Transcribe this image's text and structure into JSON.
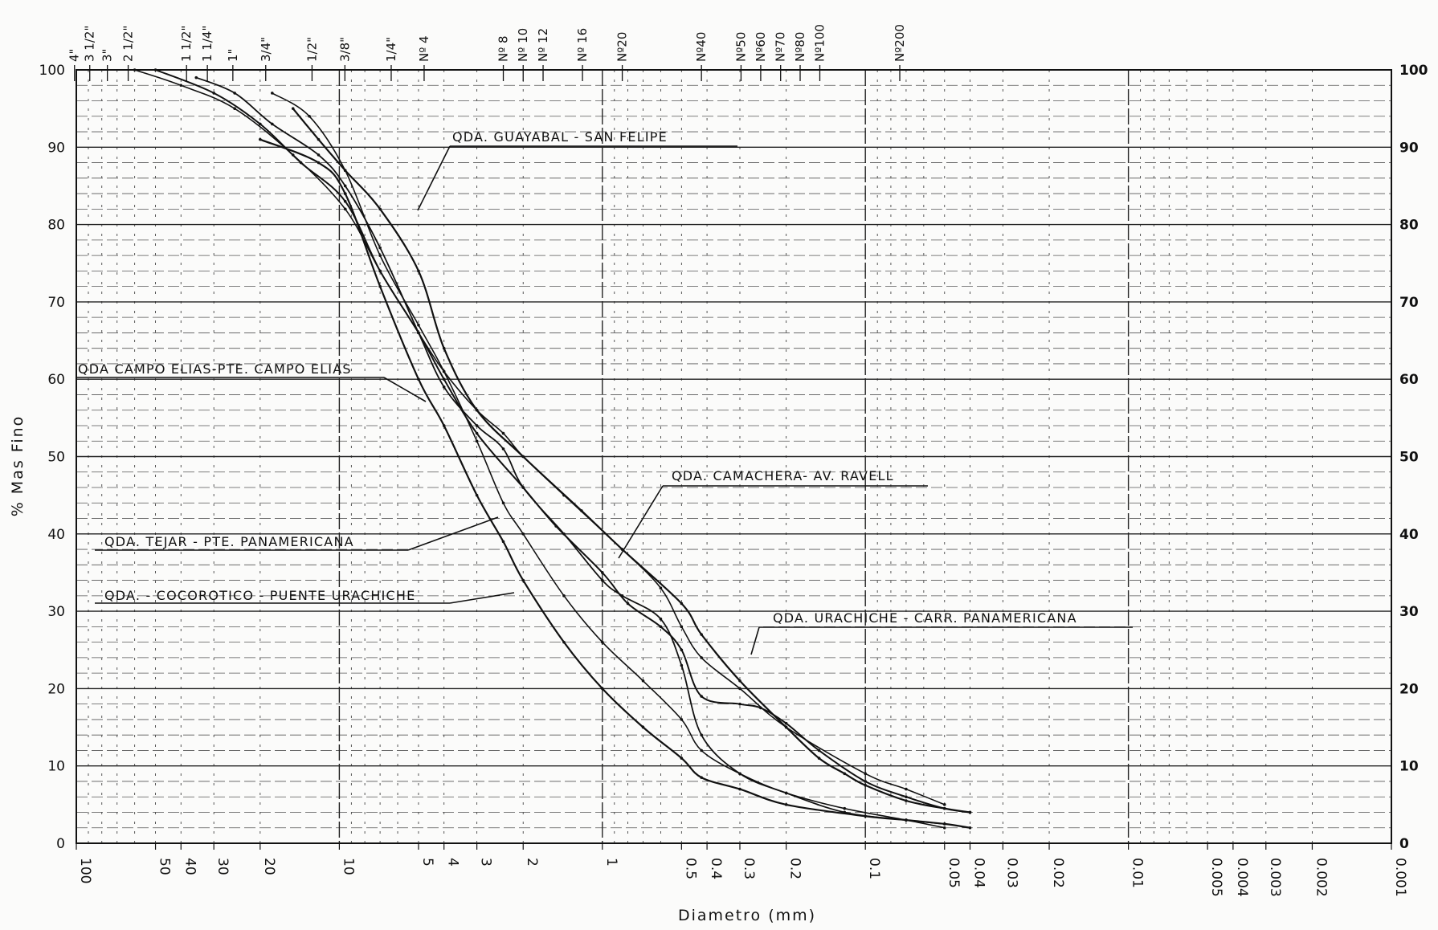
{
  "chart_data": {
    "type": "line",
    "title": "",
    "xlabel": "Diametro (mm)",
    "ylabel": "% Mas Fino",
    "x_scale": "log",
    "x_reversed": true,
    "xlim": [
      100,
      0.001
    ],
    "ylim": [
      0,
      100
    ],
    "grid": true,
    "x_tick_labels": [
      "100",
      "50",
      "40",
      "30",
      "20",
      "10",
      "5",
      "4",
      "3",
      "2",
      "1",
      "0.5",
      "0.4",
      "0.3",
      "0.2",
      "0.1",
      "0.05",
      "0.04",
      "0.03",
      "0.02",
      "0.01",
      "0.005",
      "0.004",
      "0.003",
      "0.002",
      "0.001"
    ],
    "x_tick_values": [
      100,
      50,
      40,
      30,
      20,
      10,
      5,
      4,
      3,
      2,
      1,
      0.5,
      0.4,
      0.3,
      0.2,
      0.1,
      0.05,
      0.04,
      0.03,
      0.02,
      0.01,
      0.005,
      0.004,
      0.003,
      0.002,
      0.001
    ],
    "y_tick_labels": [
      "0",
      "10",
      "20",
      "30",
      "40",
      "50",
      "60",
      "70",
      "80",
      "90",
      "100"
    ],
    "y_tick_values": [
      0,
      10,
      20,
      30,
      40,
      50,
      60,
      70,
      80,
      90,
      100
    ],
    "sieve_labels_top": [
      {
        "label": "4\"",
        "size": 101.6
      },
      {
        "label": "3 1/2\"",
        "size": 88.9
      },
      {
        "label": "3\"",
        "size": 76.2
      },
      {
        "label": "2 1/2\"",
        "size": 63.5
      },
      {
        "label": "1 1/2\"",
        "size": 38.1
      },
      {
        "label": "1 1/4\"",
        "size": 31.75
      },
      {
        "label": "1\"",
        "size": 25.4
      },
      {
        "label": "3/4\"",
        "size": 19.05
      },
      {
        "label": "1/2\"",
        "size": 12.7
      },
      {
        "label": "3/8\"",
        "size": 9.525
      },
      {
        "label": "1/4\"",
        "size": 6.35
      },
      {
        "label": "Nº 4",
        "size": 4.76
      },
      {
        "label": "Nº 8",
        "size": 2.38
      },
      {
        "label": "Nº 10",
        "size": 2.0
      },
      {
        "label": "Nº 12",
        "size": 1.68
      },
      {
        "label": "Nº 16",
        "size": 1.19
      },
      {
        "label": "Nº20",
        "size": 0.84
      },
      {
        "label": "Nº40",
        "size": 0.42
      },
      {
        "label": "Nº50",
        "size": 0.297
      },
      {
        "label": "Nº60",
        "size": 0.25
      },
      {
        "label": "Nº70",
        "size": 0.21
      },
      {
        "label": "Nº80",
        "size": 0.177
      },
      {
        "label": "Nº100",
        "size": 0.149
      },
      {
        "label": "Nº200",
        "size": 0.074
      }
    ],
    "series": [
      {
        "name": "QDA. GUAYABAL - SAN FELIPE",
        "x": [
          15,
          12,
          9.5,
          7,
          5,
          4,
          3,
          2,
          1.2,
          0.84,
          0.5,
          0.42,
          0.3,
          0.2,
          0.15,
          0.12,
          0.1,
          0.07,
          0.05,
          0.04
        ],
        "y": [
          95,
          91,
          87,
          82,
          74,
          64,
          56,
          50,
          43,
          38,
          31,
          27,
          21,
          15,
          11,
          9,
          7.5,
          5.5,
          4.5,
          4
        ]
      },
      {
        "name": "QDA. CAMPO ELIAS - PTE. CAMPO ELIAS",
        "x": [
          60,
          40,
          25,
          15,
          9.5,
          7,
          5,
          4,
          3,
          2.38,
          2,
          1.4,
          0.84,
          0.6,
          0.5,
          0.42,
          0.3,
          0.2,
          0.1,
          0.07,
          0.05
        ],
        "y": [
          100,
          98,
          95,
          89,
          82,
          74,
          66,
          61,
          56,
          53,
          50,
          45,
          38,
          33,
          28,
          24,
          20,
          15,
          9,
          7,
          5
        ]
      },
      {
        "name": "QDA. CAMACHERA - AV. RAVELL",
        "x": [
          50,
          30,
          20,
          14,
          9.5,
          7,
          5,
          4,
          3,
          2,
          1.5,
          1,
          0.8,
          0.6,
          0.5,
          0.42,
          0.3,
          0.25,
          0.2,
          0.15,
          0.1,
          0.07,
          0.05,
          0.04
        ],
        "y": [
          100,
          97,
          93,
          88,
          83,
          74,
          66,
          60,
          53,
          46,
          41,
          35,
          31,
          28,
          25,
          19,
          18,
          17.5,
          15.5,
          12,
          8,
          6,
          4.5,
          4
        ]
      },
      {
        "name": "QDA. TEJAR - PTE. PANAMERICANA",
        "x": [
          20,
          12,
          9.5,
          7,
          5,
          4,
          3,
          2.38,
          2,
          1.4,
          1,
          0.7,
          0.5,
          0.42,
          0.3,
          0.2,
          0.1,
          0.07,
          0.05,
          0.04
        ],
        "y": [
          91,
          88,
          84,
          72,
          60,
          54,
          45,
          39,
          34,
          26,
          20,
          15,
          11,
          8.5,
          7,
          5,
          3.5,
          3,
          2.5,
          2
        ]
      },
      {
        "name": "QDA. COCOROTICO - PUENTE URACHICHE",
        "x": [
          18,
          13,
          9.5,
          7,
          5,
          4,
          3,
          2.38,
          2,
          1.4,
          1,
          0.7,
          0.5,
          0.42,
          0.3,
          0.2,
          0.12,
          0.07,
          0.05
        ],
        "y": [
          97,
          94,
          87,
          76,
          67,
          61,
          52,
          44,
          40,
          32,
          26,
          21,
          16,
          12,
          9,
          6.5,
          4.5,
          3,
          2
        ]
      },
      {
        "name": "QDA. URACHICHE - CARR. PANAMERICANA",
        "x": [
          35,
          25,
          18,
          12,
          9.5,
          7,
          5,
          4,
          3,
          2.38,
          2,
          1.4,
          1,
          0.84,
          0.6,
          0.5,
          0.42,
          0.3,
          0.2,
          0.12,
          0.07,
          0.05
        ],
        "y": [
          99,
          97,
          93,
          89,
          85,
          77,
          66,
          59,
          54,
          51,
          46,
          40,
          34,
          32,
          29,
          23,
          14,
          9,
          6.5,
          4,
          3,
          2.5
        ]
      }
    ],
    "curve_labels": [
      {
        "text": "QDA. GUAYABAL - SAN FELIPE",
        "series": 0
      },
      {
        "text": "QDA CAMPO ELIAS-PTE. CAMPO ELIAS",
        "series": 1
      },
      {
        "text": "QDA. CAMACHERA- AV. RAVELL",
        "series": 2
      },
      {
        "text": "QDA. TEJAR - PTE. PANAMERICANA",
        "series": 3
      },
      {
        "text": "QDA. - COCOROTICO - PUENTE URACHICHE",
        "series": 4
      },
      {
        "text": "QDA. URACHICHE - CARR. PANAMERICANA",
        "series": 5
      }
    ]
  }
}
